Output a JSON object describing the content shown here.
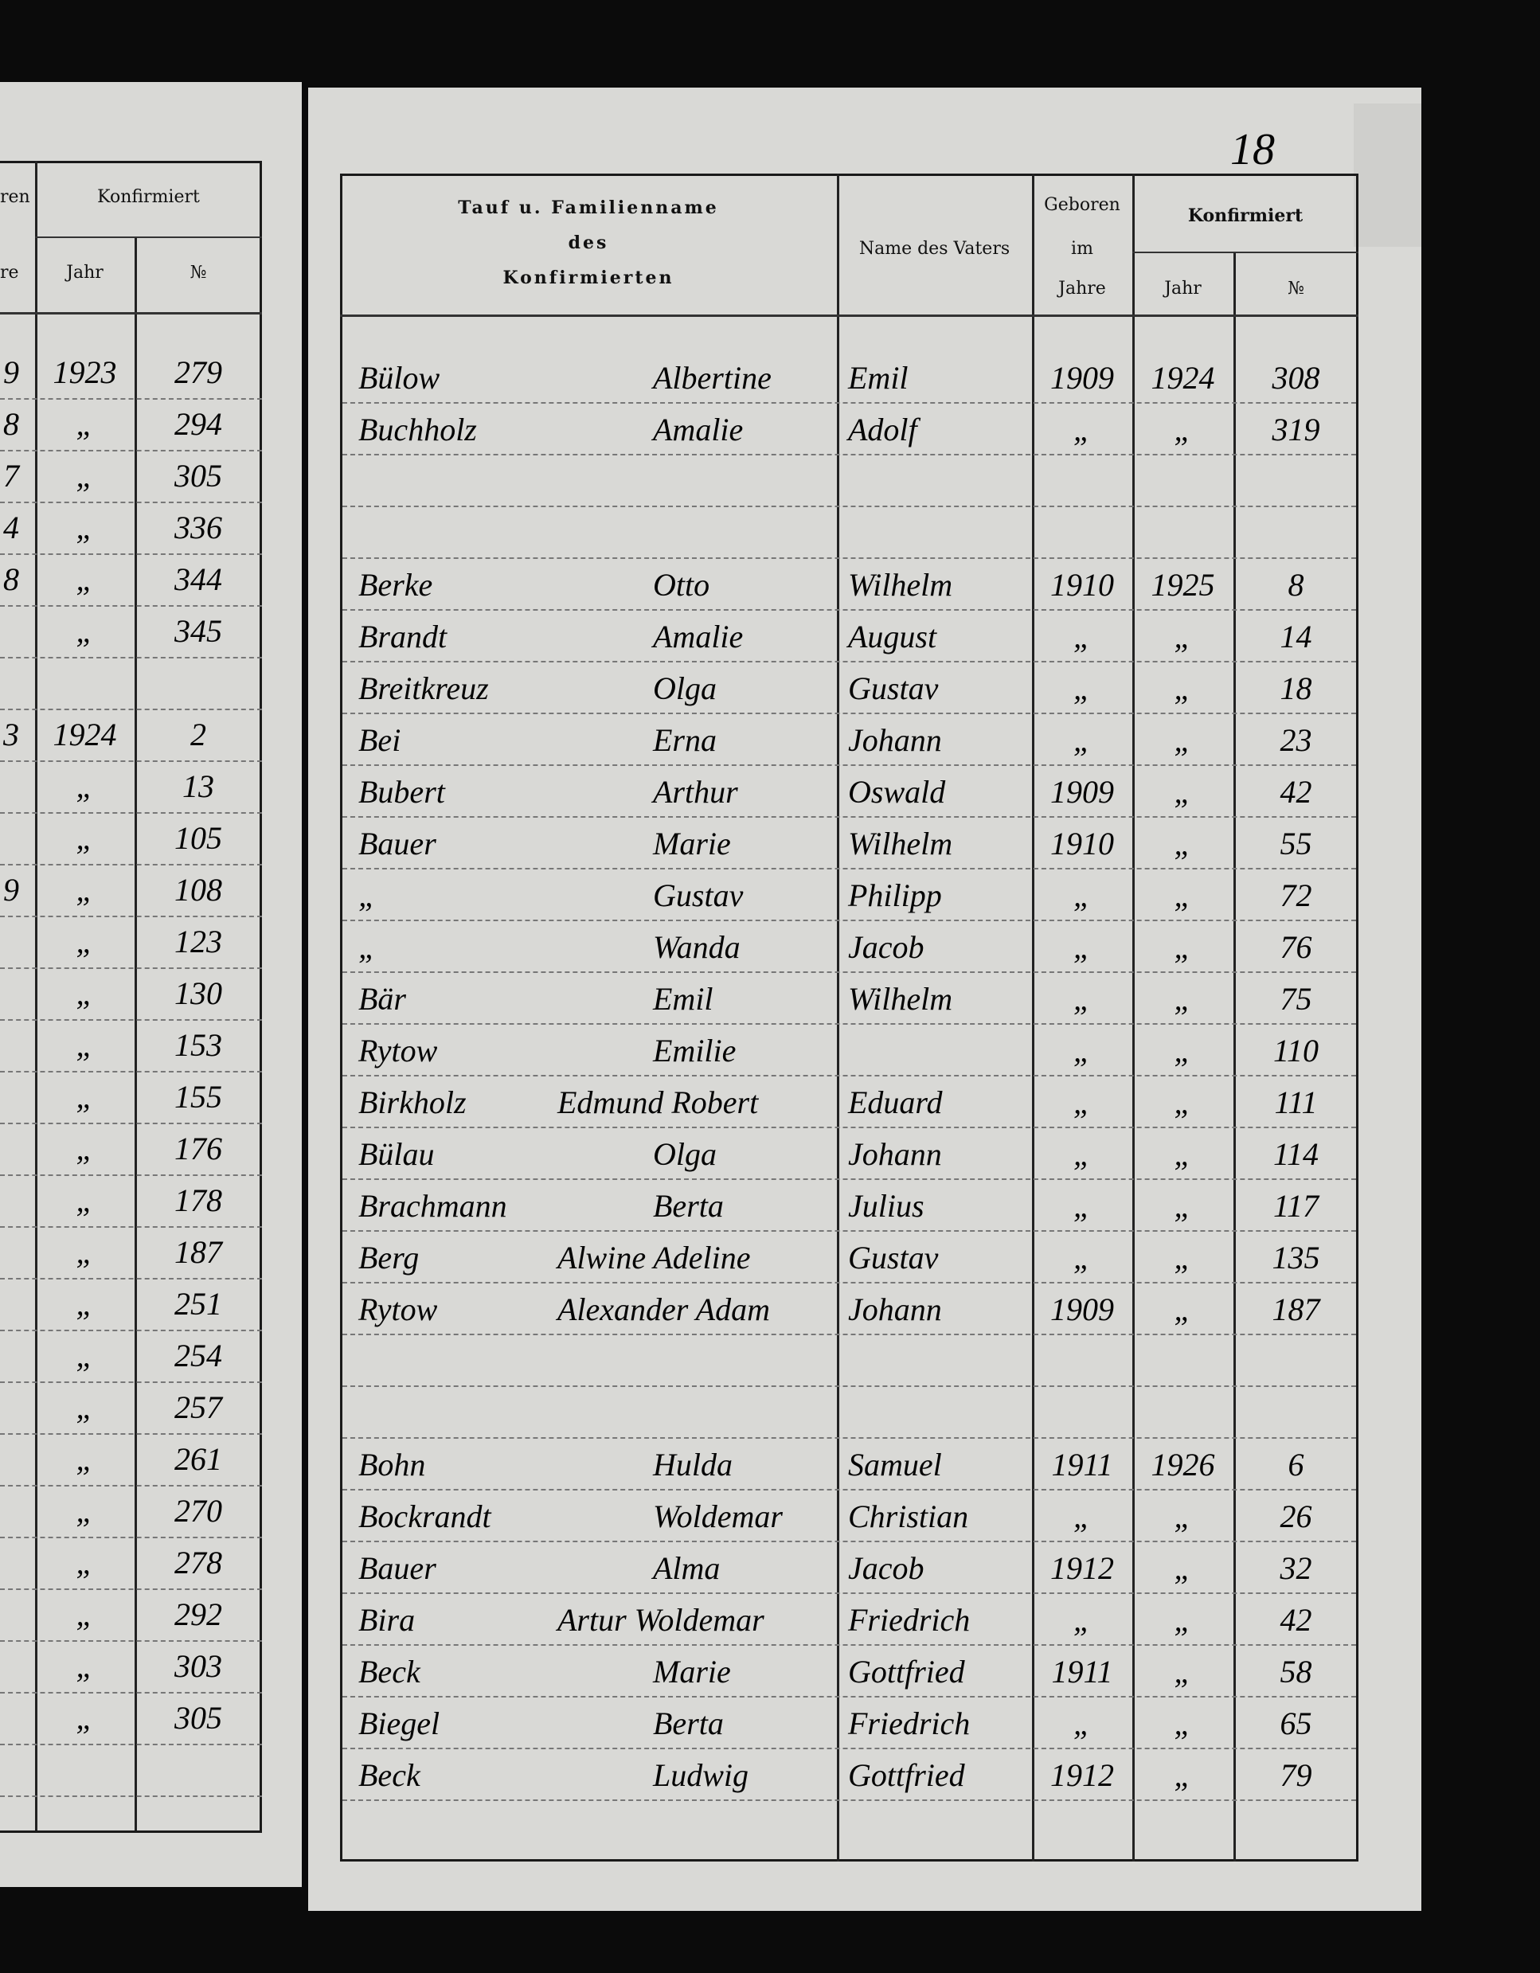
{
  "page_number": "18",
  "left_page": {
    "headers": {
      "born_partial": "ren",
      "confirmed": "Konfirmiert",
      "years_partial": "re",
      "year": "Jahr",
      "number": "№"
    },
    "sections": [
      {
        "rows": [
          {
            "born": "9",
            "year": "1923",
            "no": "279"
          },
          {
            "born": "8",
            "year": "„",
            "no": "294"
          },
          {
            "born": "7",
            "year": "„",
            "no": "305"
          },
          {
            "born": "4",
            "year": "„",
            "no": "336"
          },
          {
            "born": "8",
            "year": "„",
            "no": "344"
          },
          {
            "year": "„",
            "no": "345"
          }
        ]
      },
      {
        "rows": [
          {
            "born": "3",
            "year": "1924",
            "no": "2"
          },
          {
            "year": "„",
            "no": "13"
          },
          {
            "year": "„",
            "no": "105"
          },
          {
            "born": "9",
            "year": "„",
            "no": "108"
          },
          {
            "year": "„",
            "no": "123"
          },
          {
            "year": "„",
            "no": "130"
          },
          {
            "year": "„",
            "no": "153"
          },
          {
            "year": "„",
            "no": "155"
          },
          {
            "year": "„",
            "no": "176"
          },
          {
            "year": "„",
            "no": "178"
          },
          {
            "year": "„",
            "no": "187"
          },
          {
            "year": "„",
            "no": "251"
          },
          {
            "year": "„",
            "no": "254"
          },
          {
            "year": "„",
            "no": "257"
          },
          {
            "year": "„",
            "no": "261"
          },
          {
            "year": "„",
            "no": "270"
          },
          {
            "year": "„",
            "no": "278"
          },
          {
            "year": "„",
            "no": "292"
          },
          {
            "year": "„",
            "no": "303"
          },
          {
            "year": "„",
            "no": "305"
          }
        ]
      }
    ]
  },
  "right_page": {
    "headers": {
      "name_line1": "Tauf u. Familienname",
      "name_line2": "des",
      "name_line3": "Konfirmierten",
      "father": "Name des Vaters",
      "born_line1": "Geboren",
      "born_line2": "im",
      "born_line3": "Jahre",
      "confirmed": "Konfirmiert",
      "year": "Jahr",
      "number": "№"
    },
    "sections": [
      {
        "rows": [
          {
            "surname": "Bülow",
            "given": "Albertine",
            "father": "Emil",
            "born": "1909",
            "year": "1924",
            "no": "308"
          },
          {
            "surname": "Buchholz",
            "given": "Amalie",
            "father": "Adolf",
            "born": "„",
            "year": "„",
            "no": "319"
          }
        ]
      },
      {
        "rows": [
          {
            "surname": "Berke",
            "given": "Otto",
            "father": "Wilhelm",
            "born": "1910",
            "year": "1925",
            "no": "8"
          },
          {
            "surname": "Brandt",
            "given": "Amalie",
            "father": "August",
            "born": "„",
            "year": "„",
            "no": "14"
          },
          {
            "surname": "Breitkreuz",
            "given": "Olga",
            "father": "Gustav",
            "born": "„",
            "year": "„",
            "no": "18"
          },
          {
            "surname": "Bei",
            "given": "Erna",
            "father": "Johann",
            "born": "„",
            "year": "„",
            "no": "23"
          },
          {
            "surname": "Bubert",
            "given": "Arthur",
            "father": "Oswald",
            "born": "1909",
            "year": "„",
            "no": "42"
          },
          {
            "surname": "Bauer",
            "given": "Marie",
            "father": "Wilhelm",
            "born": "1910",
            "year": "„",
            "no": "55"
          },
          {
            "surname": "„",
            "given": "Gustav",
            "father": "Philipp",
            "born": "„",
            "year": "„",
            "no": "72"
          },
          {
            "surname": "„",
            "given": "Wanda",
            "father": "Jacob",
            "born": "„",
            "year": "„",
            "no": "76"
          },
          {
            "surname": "Bär",
            "given": "Emil",
            "father": "Wilhelm",
            "born": "„",
            "year": "„",
            "no": "75"
          },
          {
            "surname": "Rytow",
            "given": "Emilie",
            "born": "„",
            "year": "„",
            "no": "110"
          },
          {
            "surname": "Birkholz",
            "given": "Edmund Robert",
            "father": "Eduard",
            "born": "„",
            "year": "„",
            "no": "111"
          },
          {
            "surname": "Bülau",
            "given": "Olga",
            "father": "Johann",
            "born": "„",
            "year": "„",
            "no": "114"
          },
          {
            "surname": "Brachmann",
            "given": "Berta",
            "father": "Julius",
            "born": "„",
            "year": "„",
            "no": "117"
          },
          {
            "surname": "Berg",
            "given": "Alwine Adeline",
            "father": "Gustav",
            "born": "„",
            "year": "„",
            "no": "135"
          },
          {
            "surname": "Rytow",
            "given": "Alexander Adam",
            "father": "Johann",
            "born": "1909",
            "year": "„",
            "no": "187"
          }
        ]
      },
      {
        "rows": [
          {
            "surname": "Bohn",
            "given": "Hulda",
            "father": "Samuel",
            "born": "1911",
            "year": "1926",
            "no": "6"
          },
          {
            "surname": "Bockrandt",
            "given": "Woldemar",
            "father": "Christian",
            "born": "„",
            "year": "„",
            "no": "26"
          },
          {
            "surname": "Bauer",
            "given": "Alma",
            "father": "Jacob",
            "born": "1912",
            "year": "„",
            "no": "32"
          },
          {
            "surname": "Bira",
            "given": "Artur Woldemar",
            "father": "Friedrich",
            "born": "„",
            "year": "„",
            "no": "42"
          },
          {
            "surname": "Beck",
            "given": "Marie",
            "father": "Gottfried",
            "born": "1911",
            "year": "„",
            "no": "58"
          },
          {
            "surname": "Biegel",
            "given": "Berta",
            "father": "Friedrich",
            "born": "„",
            "year": "„",
            "no": "65"
          },
          {
            "surname": "Beck",
            "given": "Ludwig",
            "father": "Gottfried",
            "born": "1912",
            "year": "„",
            "no": "79"
          }
        ]
      }
    ]
  }
}
